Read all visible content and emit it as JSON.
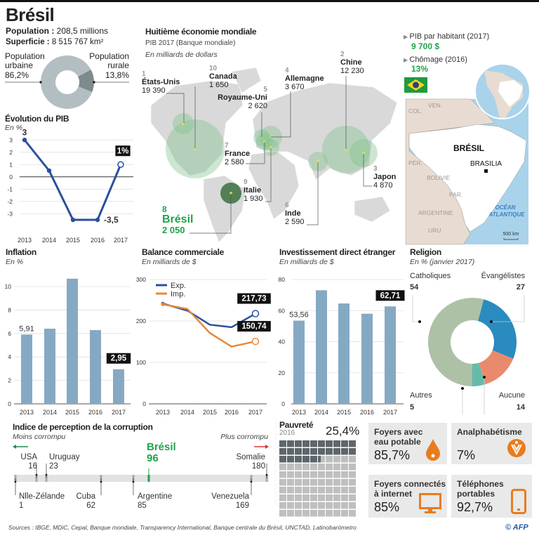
{
  "title": "Brésil",
  "population": {
    "label": "Population : ",
    "value": "208,5 millions"
  },
  "superficie": {
    "label": "Superficie : ",
    "value": "8 515 767 km²"
  },
  "urban": {
    "label1": "Population",
    "label2": "urbaine",
    "value": "86,2%"
  },
  "rural": {
    "label1": "Population",
    "label2": "rurale",
    "value": "13,8%"
  },
  "pib_evo": {
    "title": "Évolution du PIB",
    "unit": "En %"
  },
  "world": {
    "title": "Huitième économie mondiale",
    "subtitle": "PIB 2017 (Banque mondiale)",
    "unit": "En milliards de dollars"
  },
  "facts": {
    "pib_hab_label": "PIB par habitant (2017)",
    "pib_hab_value": "9 700 $",
    "chomage_label": "Chômage (2016)",
    "chomage_value": "13%"
  },
  "brazil_map": {
    "country": "BRÉSIL",
    "capital": "BRASILIA",
    "ocean1": "OCÉAN",
    "ocean2": "ATLANTIQUE",
    "scale": "500 km",
    "neighbors": [
      "VEN.",
      "COL.",
      "PÉR.",
      "BOLIVIE",
      "PAR.",
      "ARGENTINE",
      "URU."
    ]
  },
  "inflation": {
    "title": "Inflation",
    "unit": "En %"
  },
  "balance": {
    "title": "Balance commerciale",
    "unit": "En milliards de $"
  },
  "ide": {
    "title": "Investissement direct étranger",
    "unit": "En milliards de $"
  },
  "religion": {
    "title": "Religion",
    "unit": "En % (janvier 2017)"
  },
  "corruption": {
    "title": "Indice de perception de la corruption",
    "less": "Moins corrompu",
    "more": "Plus corrompu"
  },
  "poverty": {
    "title": "Pauvreté",
    "year": "2016",
    "value": "25,4%"
  },
  "cards": [
    {
      "title1": "Foyers avec",
      "title2": "eau potable",
      "value": "85,7%",
      "icon": "water-drop-icon"
    },
    {
      "title1": "Analphabétisme",
      "title2": "",
      "value": "7%",
      "icon": "literacy-icon"
    },
    {
      "title1": "Foyers connectés",
      "title2": "à internet",
      "value": "85%",
      "icon": "monitor-icon"
    },
    {
      "title1": "Téléphones",
      "title2": "portables",
      "value": "92,7%",
      "icon": "mobile-phone-icon"
    }
  ],
  "sources": "Sources : IBGE, MDiC, Cepal, Banque mondiale, Transparency International, Banque centrale du Brésil, UNCTAD, Latinobarómetro",
  "credit": "© AFP",
  "colors": {
    "green": "#1fa34a",
    "blue": "#2b4f9e",
    "orange": "#e8883a",
    "bar": "#86a9c3",
    "dark": "#5d666b",
    "accent": "#e87c1e"
  },
  "chart_data": [
    {
      "id": "population",
      "type": "pie",
      "labels": [
        "Population urbaine",
        "Population rurale"
      ],
      "values": [
        86.2,
        13.8
      ],
      "colors": [
        "#b3bec2",
        "#7d8a8e"
      ]
    },
    {
      "id": "pib",
      "type": "line",
      "title": "Évolution du PIB",
      "ylabel": "En %",
      "x": [
        "2013",
        "2014",
        "2015",
        "2016",
        "2017"
      ],
      "values": [
        3,
        0.5,
        -3.5,
        -3.5,
        1
      ],
      "yticks": [
        3,
        2,
        1,
        0,
        -1,
        -2,
        -3
      ],
      "ylim": [
        -3.9,
        3.3
      ],
      "labels": {
        "2013": "3",
        "2016": "-3,5",
        "2017": "1%"
      }
    },
    {
      "id": "world_gdp",
      "type": "scatter",
      "title": "Huitième économie mondiale",
      "unit": "En milliards de dollars",
      "points": [
        {
          "rank": "1",
          "name": "États-Unis",
          "value": "19 390"
        },
        {
          "rank": "2",
          "name": "Chine",
          "value": "12 230"
        },
        {
          "rank": "3",
          "name": "Japon",
          "value": "4 870"
        },
        {
          "rank": "4",
          "name": "Allemagne",
          "value": "3 670"
        },
        {
          "rank": "5",
          "name": "Royaume-Uni",
          "value": "2 620"
        },
        {
          "rank": "6",
          "name": "Inde",
          "value": "2 590"
        },
        {
          "rank": "7",
          "name": "France",
          "value": "2 580"
        },
        {
          "rank": "8",
          "name": "Brésil",
          "value": "2 050"
        },
        {
          "rank": "9",
          "name": "Italie",
          "value": "1 930"
        },
        {
          "rank": "10",
          "name": "Canada",
          "value": "1 650"
        }
      ]
    },
    {
      "id": "inflation",
      "type": "bar",
      "title": "Inflation",
      "ylabel": "En %",
      "categories": [
        "2013",
        "2014",
        "2015",
        "2016",
        "2017"
      ],
      "values": [
        5.91,
        6.41,
        10.67,
        6.29,
        2.95
      ],
      "yticks": [
        0,
        2,
        4,
        6,
        8,
        10
      ],
      "ylim": [
        0,
        10.6
      ],
      "labels": {
        "2013": "5,91",
        "2017": "2,95"
      }
    },
    {
      "id": "balance",
      "type": "line",
      "title": "Balance commerciale",
      "ylabel": "En milliards de $",
      "x": [
        "2013",
        "2014",
        "2015",
        "2016",
        "2017"
      ],
      "yticks": [
        0,
        100,
        200,
        300
      ],
      "ylim": [
        0,
        300
      ],
      "series": [
        {
          "name": "Exp.",
          "values": [
            242,
            225,
            191,
            185,
            217.73
          ],
          "color": "#2b4f9e",
          "label": "217,73"
        },
        {
          "name": "Imp.",
          "values": [
            240,
            229,
            171,
            138,
            150.74
          ],
          "color": "#e8883a",
          "label": "150,74"
        }
      ]
    },
    {
      "id": "ide",
      "type": "bar",
      "title": "Investissement direct étranger",
      "ylabel": "En milliards de $",
      "categories": [
        "2013",
        "2014",
        "2015",
        "2016",
        "2017"
      ],
      "values": [
        53.56,
        73.1,
        64.6,
        58.0,
        62.71
      ],
      "yticks": [
        0,
        20,
        40,
        60,
        80
      ],
      "ylim": [
        0,
        80
      ],
      "labels": {
        "2013": "53,56",
        "2017": "62,71"
      }
    },
    {
      "id": "religion",
      "type": "pie",
      "title": "Religion",
      "unit": "En % (janvier 2017)",
      "labels": [
        "Évangélistes",
        "Aucune",
        "Autres",
        "Catholiques"
      ],
      "values": [
        27,
        14,
        5,
        54
      ],
      "colors": [
        "#2a8bbf",
        "#ea8a6c",
        "#66bba8",
        "#adc1a6"
      ]
    },
    {
      "id": "corruption",
      "type": "scatter",
      "title": "Indice de perception de la corruption",
      "xlim": [
        1,
        180
      ],
      "points": [
        {
          "name": "Nlle-Zélande",
          "rank": 1,
          "pos": "below"
        },
        {
          "name": "USA",
          "rank": 16,
          "pos": "above"
        },
        {
          "name": "Uruguay",
          "rank": 23,
          "pos": "above"
        },
        {
          "name": "Cuba",
          "rank": 62,
          "pos": "below"
        },
        {
          "name": "Argentine",
          "rank": 85,
          "pos": "below"
        },
        {
          "name": "Brésil",
          "rank": 96,
          "pos": "above",
          "highlight": true
        },
        {
          "name": "Venezuela",
          "rank": 169,
          "pos": "below"
        },
        {
          "name": "Somalie",
          "rank": 180,
          "pos": "above"
        }
      ]
    },
    {
      "id": "poverty",
      "type": "heatmap",
      "title": "Pauvreté",
      "value": 25.4,
      "total": 100
    }
  ]
}
